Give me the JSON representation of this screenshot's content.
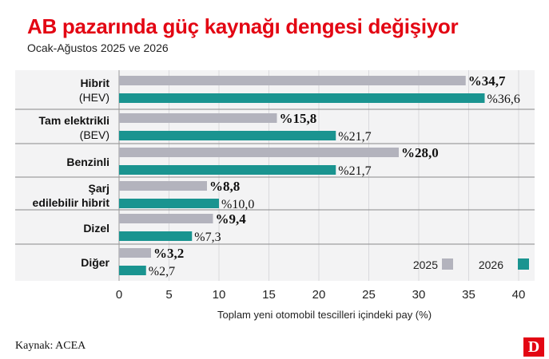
{
  "title": "AB pazarında güç kaynağı dengesi değişiyor",
  "subtitle": "Ocak-Ağustos 2025 ve 2026",
  "source": "Kaynak: ACEA",
  "logo": "D",
  "colors": {
    "title": "#e30613",
    "series_2025": "#b3b3bd",
    "series_2026": "#1a9490",
    "background": "#f3f3f4"
  },
  "chart_data": {
    "type": "bar",
    "orientation": "horizontal",
    "categories": [
      [
        "Hibrit",
        "(HEV)"
      ],
      [
        "Tam elektrikli",
        "(BEV)"
      ],
      [
        "Benzinli"
      ],
      [
        "Şarj",
        "edilebilir hibrit"
      ],
      [
        "Dizel"
      ],
      [
        "Diğer"
      ]
    ],
    "series": [
      {
        "name": "2025",
        "values": [
          34.7,
          15.8,
          28.0,
          8.8,
          9.4,
          3.2
        ],
        "labels": [
          "%34,7",
          "%15,8",
          "%28,0",
          "%8,8",
          "%9,4",
          "%3,2"
        ]
      },
      {
        "name": "2026",
        "values": [
          36.6,
          21.7,
          21.7,
          10.0,
          7.3,
          2.7
        ],
        "labels": [
          "%36,6",
          "%21,7",
          "%21,7",
          "%10,0",
          "%7,3",
          "%2,7"
        ]
      }
    ],
    "xlim": [
      0,
      40
    ],
    "xticks": [
      "0",
      "5",
      "10",
      "15",
      "20",
      "25",
      "30",
      "35",
      "40"
    ],
    "xlabel": "Toplam yeni otomobil tescilleri içindeki pay (%)",
    "legend": "bottom-right"
  }
}
